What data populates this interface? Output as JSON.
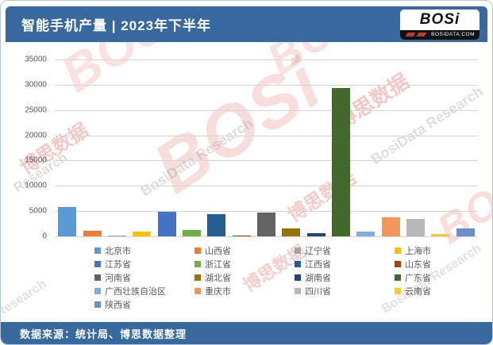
{
  "header": {
    "title": "智能手机产量 | 2023年下半年",
    "logo": {
      "text": "BOSi",
      "subtext": "BOSIDATA.COM"
    }
  },
  "footer": {
    "text": "数据来源：统计局、博思数据整理"
  },
  "watermark": {
    "brand": "BOSi",
    "cn": "博思数据",
    "en": "BosiData Research",
    "en_short": "Research"
  },
  "colors": {
    "header_bar": "#38699E",
    "gridline": "#d6d6d6",
    "tick_text": "#595959"
  },
  "chart_data": {
    "type": "bar",
    "title": "智能手机产量 | 2023年下半年",
    "xlabel": "",
    "ylabel": "",
    "ylim": [
      0,
      35000
    ],
    "yticks": [
      0,
      5000,
      10000,
      15000,
      20000,
      25000,
      30000,
      35000
    ],
    "grid": true,
    "legend_position": "bottom",
    "categories": [
      "北京市",
      "山西省",
      "辽宁省",
      "上海市",
      "江苏省",
      "浙江省",
      "江西省",
      "山东省",
      "河南省",
      "湖北省",
      "湖南省",
      "广东省",
      "广西壮族自治区",
      "重庆市",
      "四川省",
      "云南省",
      "陕西省"
    ],
    "values": [
      5800,
      1100,
      200,
      950,
      4850,
      1250,
      4350,
      200,
      4700,
      1600,
      650,
      29400,
      900,
      3800,
      3500,
      500,
      1600
    ],
    "bar_colors": [
      "#5B9BD5",
      "#ED7D31",
      "#A5A5A5",
      "#FFC000",
      "#4472C4",
      "#70AD47",
      "#255E91",
      "#9E480E",
      "#636363",
      "#997300",
      "#264478",
      "#43682B",
      "#7CAFDD",
      "#F1975A",
      "#B7B7B7",
      "#FFCD33",
      "#698ED0"
    ]
  }
}
